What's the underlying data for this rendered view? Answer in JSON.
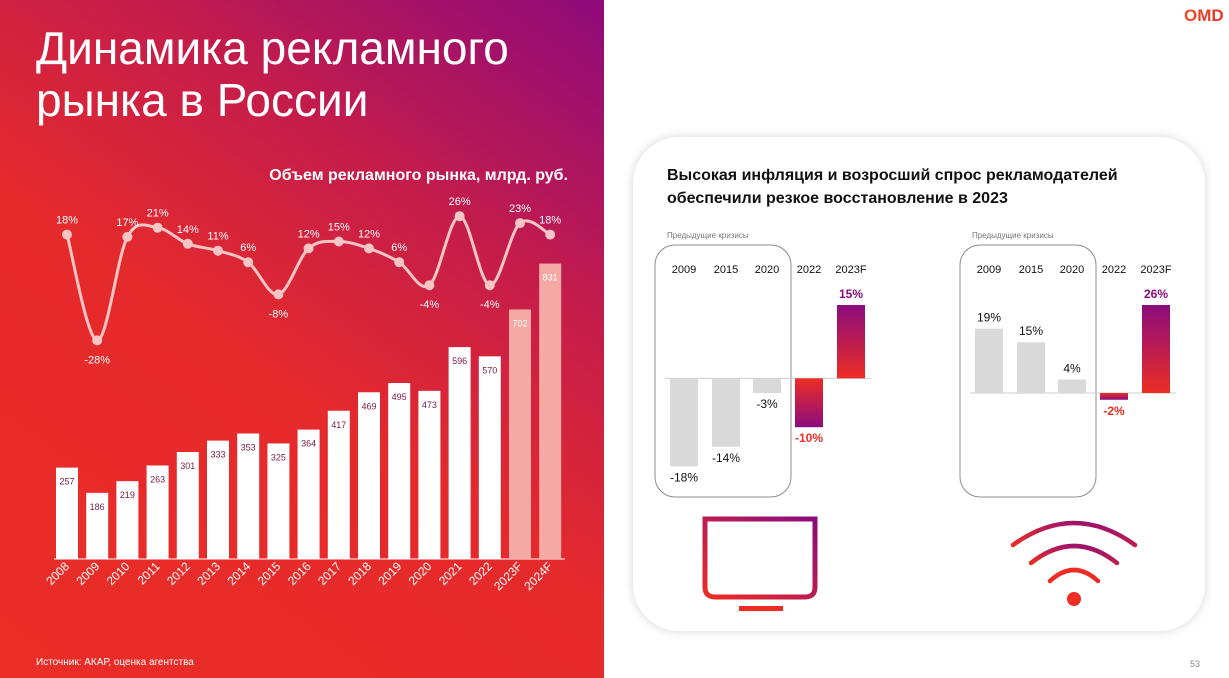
{
  "page": {
    "title": "Динамика рекламного\nрынка в России",
    "source": "Источник: АКАР, оценка агентства",
    "page_number": "53"
  },
  "logo": {
    "text": "ОМD",
    "color": "#e8322a"
  },
  "colors": {
    "actual_bar": "#ffffff",
    "forecast_bar": "#f5a9a4",
    "growth_line": "#f7c5c3",
    "negative_bar_gray": "#d9d9d9",
    "highlight_red": "#ed2d24",
    "highlight_purple": "#8b0c7d"
  },
  "card": {
    "title": "Высокая инфляция и возросший спрос рекламодателей обеспечили резкое восстановление в 2023"
  },
  "chart_data": [
    {
      "type": "bar",
      "title": "Объем рекламного рынка, млрд. руб.",
      "categories": [
        "2008",
        "2009",
        "2010",
        "2011",
        "2012",
        "2013",
        "2014",
        "2015",
        "2016",
        "2017",
        "2018",
        "2019",
        "2020",
        "2021",
        "2022",
        "2023F",
        "2024F"
      ],
      "values": [
        257,
        186,
        219,
        263,
        301,
        333,
        353,
        325,
        364,
        417,
        469,
        495,
        473,
        596,
        570,
        702,
        831
      ],
      "forecast_categories": [
        "2023F",
        "2024F"
      ],
      "series": [
        {
          "name": "",
          "type": "bar",
          "values": [
            257,
            186,
            219,
            263,
            301,
            333,
            353,
            325,
            364,
            417,
            469,
            495,
            473,
            596,
            570,
            702,
            831
          ]
        },
        {
          "name": "",
          "type": "line",
          "values": [
            18,
            -28,
            17,
            21,
            14,
            11,
            6,
            -8,
            12,
            15,
            12,
            6,
            -4,
            26,
            -4,
            23,
            18
          ],
          "labels": [
            "18%",
            "-28%",
            "17%",
            "21%",
            "14%",
            "11%",
            "6%",
            "-8%",
            "12%",
            "15%",
            "12%",
            "6%",
            "-4%",
            "26%",
            "-4%",
            "23%",
            "18%"
          ]
        }
      ],
      "grid": false,
      "legend": "none"
    },
    {
      "type": "bar",
      "id": "tv",
      "icon": "tv-icon",
      "bracket_label": "Предыдущие кризисы",
      "categories": [
        "2009",
        "2015",
        "2020",
        "2022",
        "2023F"
      ],
      "values": [
        -18,
        -14,
        -3,
        -10,
        15
      ],
      "value_labels": [
        "-18%",
        "-14%",
        "-3%",
        "-10%",
        "15%"
      ],
      "highlighted": [
        "2022",
        "2023F"
      ]
    },
    {
      "type": "bar",
      "id": "internet",
      "icon": "wifi-icon",
      "bracket_label": "Предыдущие кризисы",
      "categories": [
        "2009",
        "2015",
        "2020",
        "2022",
        "2023F"
      ],
      "values": [
        19,
        15,
        4,
        -2,
        26
      ],
      "value_labels": [
        "19%",
        "15%",
        "4%",
        "-2%",
        "26%"
      ],
      "highlighted": [
        "2022",
        "2023F"
      ]
    }
  ]
}
